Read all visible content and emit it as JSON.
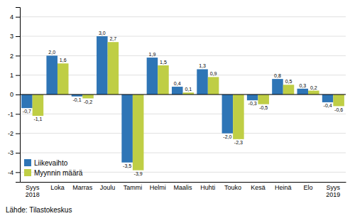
{
  "chart_data": {
    "type": "bar",
    "categories": [
      "Syys\n2018",
      "Loka",
      "Marras",
      "Joulu",
      "Tammi",
      "Helmi",
      "Maalis",
      "Huhti",
      "Touko",
      "Kesä",
      "Heinä",
      "Elo",
      "Syys\n2019"
    ],
    "series": [
      {
        "name": "Liikevaihto",
        "color": "#2E75B6",
        "values": [
          -0.7,
          2.0,
          -0.1,
          3.0,
          -3.5,
          1.9,
          0.4,
          1.3,
          -2.0,
          -0.3,
          0.8,
          0.3,
          -0.4
        ],
        "value_labels": [
          "-0,7",
          "2,0",
          "-0,1",
          "3,0",
          "-3,5",
          "1,9",
          "0,4",
          "1,3",
          "-2,0",
          "-0,3",
          "0,8",
          "0,3",
          "-0,4"
        ]
      },
      {
        "name": "Myynnin määrä",
        "color": "#BFCE45",
        "values": [
          -1.1,
          1.6,
          -0.2,
          2.7,
          -3.9,
          1.5,
          0.1,
          0.9,
          -2.3,
          -0.5,
          0.5,
          0.2,
          -0.6
        ],
        "value_labels": [
          "-1,1",
          "1,6",
          "-0,2",
          "2,7",
          "-3,9",
          "1,5",
          "0,1",
          "0,9",
          "-2,3",
          "-0,5",
          "0,5",
          "0,2",
          "-0,6"
        ]
      }
    ],
    "ylim": [
      -4.5,
      4.5
    ],
    "yticks": [
      -4,
      -3,
      -2,
      -1,
      0,
      1,
      2,
      3,
      4
    ],
    "grid": true,
    "legend": "lower left",
    "data_labels": true,
    "annotations": [
      "Lähde: Tilastokeskus"
    ]
  }
}
